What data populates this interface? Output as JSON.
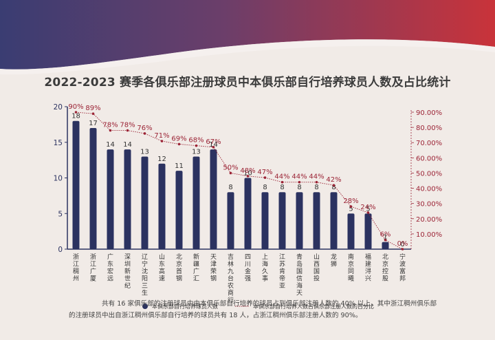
{
  "title": "2022-2023 赛季各俱乐部注册球员中本俱乐部自行培养球员人数及占比统计",
  "footnote": "共有 16 家俱乐部的注册球员中由本俱乐部自行培养的球员占到俱乐部注册人数的 40% 以上，其中浙江稠州俱乐部的注册球员中出自浙江稠州俱乐部自行培养的球员共有 18 人，占浙江稠州俱乐部注册人数的 90%。",
  "colors": {
    "bar": "#2b3260",
    "line": "#9b2335",
    "axis_left": "#2b3260",
    "axis_right": "#9b2335",
    "background": "#f1ebe7"
  },
  "chart_data": {
    "type": "bar",
    "categories": [
      "浙江稠州",
      "浙江广厦",
      "广东宏远",
      "深圳新世纪",
      "辽宁沈阳三生",
      "山东高速",
      "北京首钢",
      "新疆广汇",
      "天津荣钢",
      "吉林九台农商行",
      "四川金强",
      "上海久事",
      "江苏肯帝亚",
      "青岛国信海天",
      "山西国投",
      "龙狮",
      "南京同曦",
      "福建浔兴",
      "北京控股",
      "宁波富邦"
    ],
    "series": [
      {
        "name": "本俱乐部自行培养球员人数",
        "type": "bar",
        "axis": "left",
        "values": [
          18,
          17,
          14,
          14,
          13,
          12,
          11,
          13,
          14,
          8,
          10,
          8,
          8,
          8,
          8,
          8,
          5,
          5,
          1,
          0
        ]
      },
      {
        "name": "本俱乐部自行培养人数占俱乐部注册人数的百分比",
        "type": "line",
        "axis": "right",
        "values": [
          90,
          89,
          78,
          78,
          76,
          71,
          69,
          68,
          67,
          50,
          48,
          47,
          44,
          44,
          44,
          42,
          28,
          24,
          6,
          0
        ]
      }
    ],
    "bar_labels": [
      "18",
      "17",
      "14",
      "14",
      "13",
      "12",
      "11",
      "13",
      "14",
      "8",
      "10",
      "8",
      "8",
      "8",
      "8",
      "8",
      "5",
      "5",
      "1",
      "0"
    ],
    "line_labels": [
      "90%",
      "89%",
      "78%",
      "78%",
      "76%",
      "71%",
      "69%",
      "68%",
      "67%",
      "50%",
      "48%",
      "47%",
      "44%",
      "44%",
      "44%",
      "42%",
      "28%",
      "24%",
      "6%",
      "0%"
    ],
    "ylim_left": [
      0,
      20
    ],
    "yticks_left": [
      "0",
      "5",
      "10",
      "15",
      "20"
    ],
    "ylim_right": [
      0,
      90
    ],
    "yticks_right": [
      "10.00%",
      "20.00%",
      "30.00%",
      "40.00%",
      "50.00%",
      "60.00%",
      "70.00%",
      "80.00%",
      "90.00%"
    ],
    "legend_position": "bottom",
    "grid": false
  }
}
